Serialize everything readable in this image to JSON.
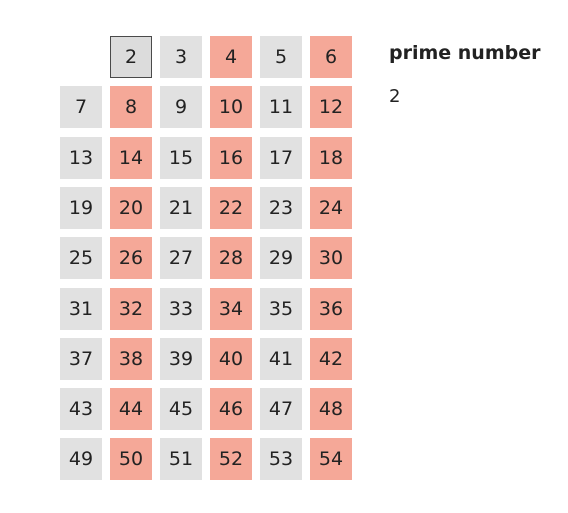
{
  "panel": {
    "title": "prime number",
    "found_primes": [
      "2"
    ]
  },
  "grid": {
    "current": "2",
    "rows": [
      [
        null,
        "2",
        "3",
        "4",
        "5",
        "6"
      ],
      [
        "7",
        "8",
        "9",
        "10",
        "11",
        "12"
      ],
      [
        "13",
        "14",
        "15",
        "16",
        "17",
        "18"
      ],
      [
        "19",
        "20",
        "21",
        "22",
        "23",
        "24"
      ],
      [
        "25",
        "26",
        "27",
        "28",
        "29",
        "30"
      ],
      [
        "31",
        "32",
        "33",
        "34",
        "35",
        "36"
      ],
      [
        "37",
        "38",
        "39",
        "40",
        "41",
        "42"
      ],
      [
        "43",
        "44",
        "45",
        "46",
        "47",
        "48"
      ],
      [
        "49",
        "50",
        "51",
        "52",
        "53",
        "54"
      ]
    ],
    "marked": [
      "4",
      "6",
      "8",
      "10",
      "12",
      "14",
      "16",
      "18",
      "20",
      "22",
      "24",
      "26",
      "28",
      "30",
      "32",
      "34",
      "36",
      "38",
      "40",
      "42",
      "44",
      "46",
      "48",
      "50",
      "52",
      "54"
    ]
  },
  "colors": {
    "unmarked": "#e1e1e1",
    "marked": "#f5a898",
    "current_border": "#4a4a4a"
  }
}
